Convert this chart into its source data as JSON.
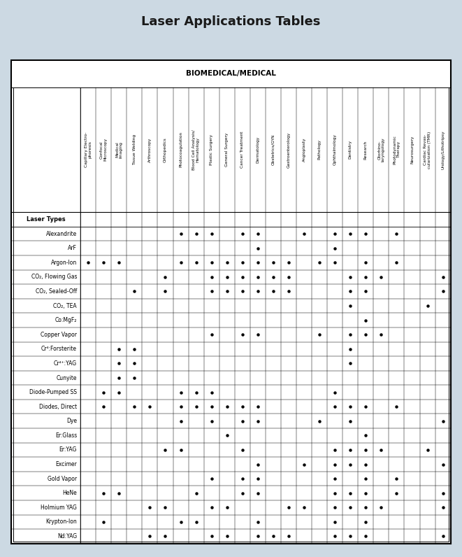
{
  "title": "Laser Applications Tables",
  "category_header": "BIOMEDICAL/MEDICAL",
  "columns": [
    "Capillary Electro-\nphoresis",
    "Confocal\nMicroscopy",
    "Medical\nImaging",
    "Tissue Welding",
    "Arthroscopy",
    "Orthopedics",
    "Photocoagulation",
    "Blood Cell Analysis/\nHematology",
    "Plastic Surgery",
    "General Surgery",
    "Cancer Treatment",
    "Dermatology",
    "Obstetrics/GYN",
    "Gastroenterology",
    "Angioplasty",
    "Pathology",
    "Ophthalmology",
    "Dentistry",
    "Research",
    "Otorhino-\nlaryngology",
    "Photodynamic\nTherapy",
    "Neurosurgery",
    "Cardiac Revas-\ncularization (TMR)",
    "Urology/Lithotripsy"
  ],
  "row_label": "Laser Types",
  "rows": [
    "Alexandrite",
    "ArF",
    "Argon-Ion",
    "CO₂, Flowing Gas",
    "CO₂, Sealed-Off",
    "CO₂, TEA",
    "Co:MgF₂",
    "Copper Vapor",
    "Cr⁴:Forsterite",
    "Cr⁴⁺:YAG",
    "Cunyite",
    "Diode-Pumped SS",
    "Diodes, Direct",
    "Dye",
    "Er:Glass",
    "Er:YAG",
    "Excimer",
    "Gold Vapor",
    "HeNe",
    "Holmium YAG",
    "Krypton-Ion",
    "Nd:YAG"
  ],
  "dots": {
    "Alexandrite": [
      0,
      0,
      0,
      0,
      0,
      0,
      1,
      1,
      1,
      0,
      1,
      1,
      0,
      0,
      1,
      0,
      1,
      1,
      1,
      0,
      1,
      0,
      0,
      0
    ],
    "ArF": [
      0,
      0,
      0,
      0,
      0,
      0,
      0,
      0,
      0,
      0,
      0,
      1,
      0,
      0,
      0,
      0,
      1,
      0,
      0,
      0,
      0,
      0,
      0,
      0
    ],
    "Argon-Ion": [
      1,
      1,
      1,
      0,
      0,
      0,
      1,
      1,
      1,
      1,
      1,
      1,
      1,
      1,
      0,
      1,
      1,
      0,
      1,
      0,
      1,
      0,
      0,
      0
    ],
    "CO₂, Flowing Gas": [
      0,
      0,
      0,
      0,
      0,
      1,
      0,
      0,
      1,
      1,
      1,
      1,
      1,
      1,
      0,
      0,
      0,
      1,
      1,
      1,
      0,
      0,
      0,
      1
    ],
    "CO₂, Sealed-Off": [
      0,
      0,
      0,
      1,
      0,
      1,
      0,
      0,
      1,
      1,
      1,
      1,
      1,
      1,
      0,
      0,
      0,
      1,
      1,
      0,
      0,
      0,
      0,
      1
    ],
    "CO₂, TEA": [
      0,
      0,
      0,
      0,
      0,
      0,
      0,
      0,
      0,
      0,
      0,
      0,
      0,
      0,
      0,
      0,
      0,
      1,
      0,
      0,
      0,
      0,
      1,
      0
    ],
    "Co:MgF₂": [
      0,
      0,
      0,
      0,
      0,
      0,
      0,
      0,
      0,
      0,
      0,
      0,
      0,
      0,
      0,
      0,
      0,
      0,
      1,
      0,
      0,
      0,
      0,
      0
    ],
    "Copper Vapor": [
      0,
      0,
      0,
      0,
      0,
      0,
      0,
      0,
      1,
      0,
      1,
      1,
      0,
      0,
      0,
      1,
      0,
      1,
      1,
      1,
      0,
      0,
      0,
      0
    ],
    "Cr⁴:Forsterite": [
      0,
      0,
      1,
      1,
      0,
      0,
      0,
      0,
      0,
      0,
      0,
      0,
      0,
      0,
      0,
      0,
      0,
      1,
      0,
      0,
      0,
      0,
      0,
      0
    ],
    "Cr⁴⁺:YAG": [
      0,
      0,
      1,
      1,
      0,
      0,
      0,
      0,
      0,
      0,
      0,
      0,
      0,
      0,
      0,
      0,
      0,
      1,
      0,
      0,
      0,
      0,
      0,
      0
    ],
    "Cunyite": [
      0,
      0,
      1,
      1,
      0,
      0,
      0,
      0,
      0,
      0,
      0,
      0,
      0,
      0,
      0,
      0,
      0,
      0,
      0,
      0,
      0,
      0,
      0,
      0
    ],
    "Diode-Pumped SS": [
      0,
      1,
      1,
      0,
      0,
      0,
      1,
      1,
      1,
      0,
      0,
      0,
      0,
      0,
      0,
      0,
      1,
      0,
      0,
      0,
      0,
      0,
      0,
      0
    ],
    "Diodes, Direct": [
      0,
      1,
      0,
      1,
      1,
      0,
      1,
      1,
      1,
      1,
      1,
      1,
      0,
      0,
      0,
      0,
      1,
      1,
      1,
      0,
      1,
      0,
      0,
      0
    ],
    "Dye": [
      0,
      0,
      0,
      0,
      0,
      0,
      1,
      0,
      1,
      0,
      1,
      1,
      0,
      0,
      0,
      1,
      0,
      1,
      0,
      0,
      0,
      0,
      0,
      1
    ],
    "Er:Glass": [
      0,
      0,
      0,
      0,
      0,
      0,
      0,
      0,
      0,
      1,
      0,
      0,
      0,
      0,
      0,
      0,
      0,
      0,
      1,
      0,
      0,
      0,
      0,
      0
    ],
    "Er:YAG": [
      0,
      0,
      0,
      0,
      0,
      1,
      1,
      0,
      0,
      0,
      1,
      0,
      0,
      0,
      0,
      0,
      1,
      1,
      1,
      1,
      0,
      0,
      1,
      0
    ],
    "Excimer": [
      0,
      0,
      0,
      0,
      0,
      0,
      0,
      0,
      0,
      0,
      0,
      1,
      0,
      0,
      1,
      0,
      1,
      1,
      1,
      0,
      0,
      0,
      0,
      1
    ],
    "Gold Vapor": [
      0,
      0,
      0,
      0,
      0,
      0,
      0,
      0,
      1,
      0,
      1,
      1,
      0,
      0,
      0,
      0,
      1,
      0,
      1,
      0,
      1,
      0,
      0,
      0
    ],
    "HeNe": [
      0,
      1,
      1,
      0,
      0,
      0,
      0,
      1,
      0,
      0,
      1,
      1,
      0,
      0,
      0,
      0,
      1,
      1,
      1,
      0,
      1,
      0,
      0,
      1
    ],
    "Holmium YAG": [
      0,
      0,
      0,
      0,
      1,
      1,
      0,
      0,
      1,
      1,
      0,
      0,
      0,
      1,
      1,
      0,
      1,
      1,
      1,
      1,
      0,
      0,
      0,
      1
    ],
    "Krypton-Ion": [
      0,
      1,
      0,
      0,
      0,
      0,
      1,
      1,
      0,
      0,
      0,
      1,
      0,
      0,
      0,
      0,
      1,
      0,
      1,
      0,
      0,
      0,
      0,
      0
    ],
    "Nd:YAG": [
      0,
      0,
      0,
      0,
      1,
      1,
      0,
      0,
      1,
      1,
      0,
      1,
      1,
      1,
      0,
      0,
      1,
      1,
      1,
      0,
      0,
      0,
      0,
      1
    ]
  },
  "bg_color": "#ccd9e3",
  "table_bg": "#ffffff",
  "dot_color": "#000000"
}
